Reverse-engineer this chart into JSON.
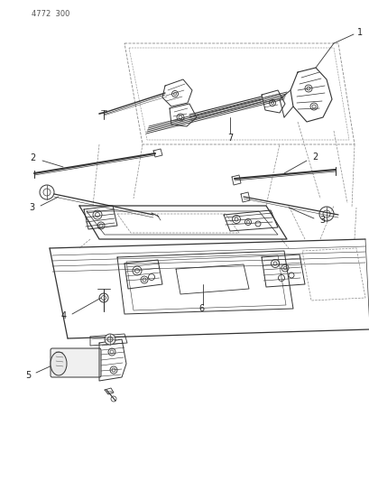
{
  "title": "4772  300",
  "bg_color": "#ffffff",
  "line_color": "#333333",
  "label_color": "#222222",
  "fig_width": 4.1,
  "fig_height": 5.33,
  "dpi": 100,
  "gray": "#888888",
  "dgray": "#555555"
}
